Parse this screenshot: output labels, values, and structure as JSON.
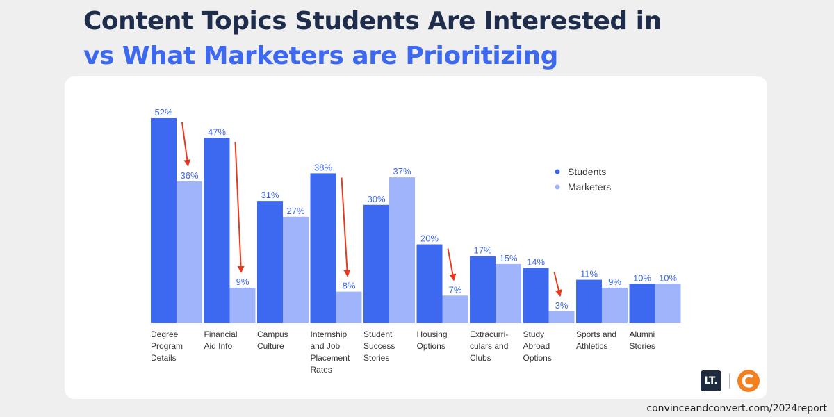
{
  "title": {
    "line1": "Content Topics Students Are Interested in",
    "line2": "vs What Marketers are Prioritizing"
  },
  "footer": "convinceandconvert.com/2024report",
  "logos": {
    "lt": "LT."
  },
  "colors": {
    "students": "#3d68f0",
    "marketers": "#9fb4fa",
    "arrow": "#e63a1f",
    "label": "#3d68f0"
  },
  "chart_data": {
    "type": "bar",
    "categories": [
      [
        "Degree",
        "Program",
        "Details"
      ],
      [
        "Financial",
        "Aid Info"
      ],
      [
        "Campus",
        "Culture"
      ],
      [
        "Internship",
        "and Job",
        "Placement",
        "Rates"
      ],
      [
        "Student",
        "Success",
        "Stories"
      ],
      [
        "Housing",
        "Options"
      ],
      [
        "Extracurri-",
        "culars and",
        "Clubs"
      ],
      [
        "Study",
        "Abroad",
        "Options"
      ],
      [
        "Sports and",
        "Athletics"
      ],
      [
        "Alumni",
        "Stories"
      ]
    ],
    "series": [
      {
        "name": "Students",
        "values": [
          52,
          47,
          31,
          38,
          30,
          20,
          17,
          14,
          11,
          10
        ]
      },
      {
        "name": "Marketers",
        "values": [
          36,
          9,
          27,
          8,
          37,
          7,
          15,
          3,
          9,
          10
        ]
      }
    ],
    "data_labels": [
      [
        "52%",
        "47%",
        "31%",
        "38%",
        "30%",
        "20%",
        "17%",
        "14%",
        "11%",
        "10%"
      ],
      [
        "36%",
        "9%",
        "27%",
        "8%",
        "37%",
        "7%",
        "15%",
        "3%",
        "9%",
        "10%"
      ]
    ],
    "ylim": [
      0,
      52
    ],
    "legend_position": "top-right",
    "grid": false,
    "annotations": [
      {
        "type": "arrow",
        "category": "Degree Program Details",
        "from": "Students",
        "to": "Marketers"
      },
      {
        "type": "arrow",
        "category": "Financial Aid Info",
        "from": "Students",
        "to": "Marketers"
      },
      {
        "type": "arrow",
        "category": "Internship and Job Placement Rates",
        "from": "Students",
        "to": "Marketers"
      },
      {
        "type": "arrow",
        "category": "Housing Options",
        "from": "Students",
        "to": "Marketers"
      },
      {
        "type": "arrow",
        "category": "Study Abroad Options",
        "from": "Students",
        "to": "Marketers"
      }
    ]
  }
}
